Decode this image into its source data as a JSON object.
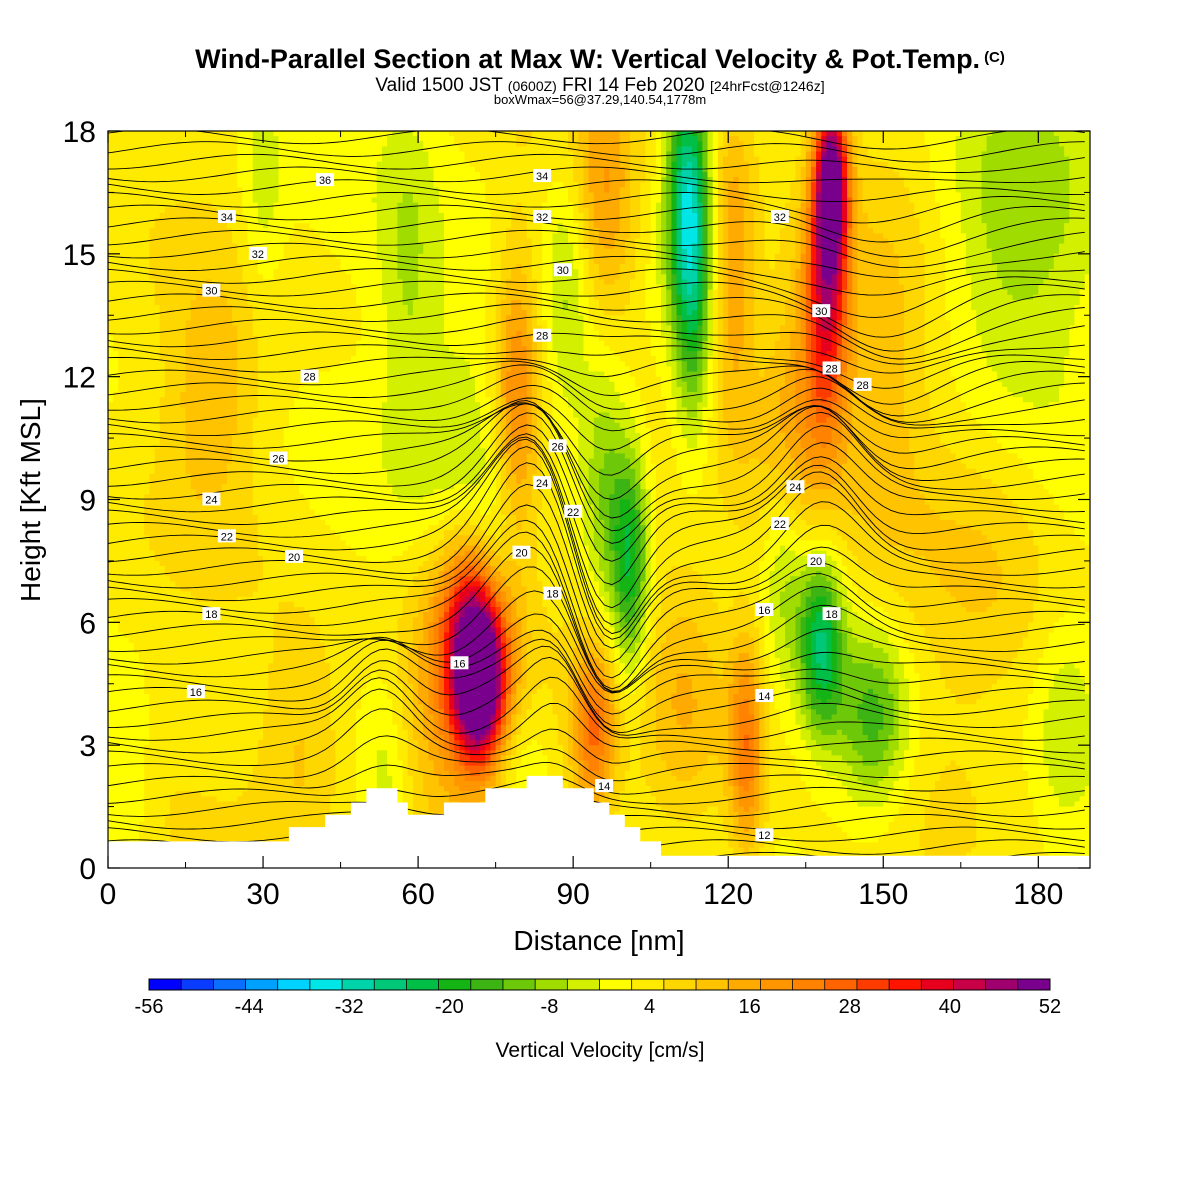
{
  "header": {
    "title": "Wind-Parallel Section at Max W: Vertical Velocity & Pot.Temp.",
    "title_mark": "(C)",
    "valid_a": "Valid 1500 JST",
    "valid_z": "(0600Z)",
    "valid_b": "FRI 14 Feb 2020",
    "fcst": "[24hrFcst@1246z]",
    "box": "boxWmax=56@37.29,140.54,1778m"
  },
  "chart_data": {
    "type": "heatmap",
    "xlabel": "Distance [nm]",
    "ylabel": "Height [Kft MSL]",
    "xlim": [
      0,
      190
    ],
    "ylim": [
      0,
      18
    ],
    "x_ticks": [
      "0",
      "30",
      "60",
      "90",
      "120",
      "150",
      "180"
    ],
    "y_ticks": [
      "0",
      "3",
      "6",
      "9",
      "12",
      "15",
      "18"
    ],
    "colorbar": {
      "label": "Vertical Velocity [cm/s]",
      "min": -56,
      "max": 52,
      "step": 4,
      "tick_labels": [
        "-56",
        "-44",
        "-32",
        "-20",
        "-8",
        "4",
        "16",
        "28",
        "40",
        "52"
      ],
      "colors": [
        "#0000ff",
        "#0a3cff",
        "#0a6eff",
        "#00a0ff",
        "#00d2ff",
        "#00e6e6",
        "#00d2aa",
        "#00c878",
        "#00be46",
        "#14b414",
        "#3cb414",
        "#6ec80a",
        "#a0dc00",
        "#d2f000",
        "#ffff00",
        "#ffeb00",
        "#ffd700",
        "#ffc300",
        "#ffaa00",
        "#ff9600",
        "#ff8200",
        "#ff6400",
        "#ff3c00",
        "#ff1400",
        "#e6001e",
        "#c80046",
        "#a0006e",
        "#78008c"
      ]
    },
    "terrain": [
      [
        0,
        0.65
      ],
      [
        35,
        0.65
      ],
      [
        35,
        1.0
      ],
      [
        42,
        1.0
      ],
      [
        42,
        1.3
      ],
      [
        47,
        1.3
      ],
      [
        47,
        1.6
      ],
      [
        50,
        1.6
      ],
      [
        50,
        1.95
      ],
      [
        56,
        1.95
      ],
      [
        56,
        1.6
      ],
      [
        58,
        1.6
      ],
      [
        58,
        1.3
      ],
      [
        65,
        1.3
      ],
      [
        65,
        1.6
      ],
      [
        73,
        1.6
      ],
      [
        73,
        1.95
      ],
      [
        81,
        1.95
      ],
      [
        81,
        2.25
      ],
      [
        88,
        2.25
      ],
      [
        88,
        1.95
      ],
      [
        94,
        1.95
      ],
      [
        94,
        1.6
      ],
      [
        97,
        1.6
      ],
      [
        97,
        1.3
      ],
      [
        100,
        1.3
      ],
      [
        100,
        1.0
      ],
      [
        103,
        1.0
      ],
      [
        103,
        0.65
      ],
      [
        107,
        0.65
      ],
      [
        107,
        0.3
      ],
      [
        190,
        0.3
      ]
    ],
    "w_features": [
      {
        "x": 72,
        "y": 4.4,
        "sx": 3.5,
        "sy": 1.4,
        "w": 50
      },
      {
        "x": 71,
        "y": 6.0,
        "sx": 5,
        "sy": 1.6,
        "w": 32
      },
      {
        "x": 65,
        "y": 3.5,
        "sx": 7,
        "sy": 2.5,
        "w": 14
      },
      {
        "x": 140,
        "y": 16.8,
        "sx": 2.2,
        "sy": 1.4,
        "w": 48
      },
      {
        "x": 139,
        "y": 14.0,
        "sx": 3,
        "sy": 2.2,
        "w": 34
      },
      {
        "x": 133,
        "y": 11.0,
        "sx": 6,
        "sy": 2.5,
        "w": 15
      },
      {
        "x": 94,
        "y": 3.4,
        "sx": 3,
        "sy": 1.5,
        "w": 22
      },
      {
        "x": 123.5,
        "y": 3.0,
        "sx": 2.5,
        "sy": 2.0,
        "w": 22
      },
      {
        "x": 79,
        "y": 11.5,
        "sx": 3,
        "sy": 2.5,
        "w": 18
      },
      {
        "x": 96,
        "y": 16.0,
        "sx": 4,
        "sy": 2.5,
        "w": 15
      },
      {
        "x": 121,
        "y": 14.5,
        "sx": 3,
        "sy": 3,
        "w": 16
      },
      {
        "x": 20,
        "y": 11.5,
        "sx": 6,
        "sy": 2,
        "w": 10
      },
      {
        "x": 38,
        "y": 3.0,
        "sx": 6,
        "sy": 2,
        "w": 9
      },
      {
        "x": 112,
        "y": 4.5,
        "sx": 6,
        "sy": 2.5,
        "w": 12
      },
      {
        "x": 101,
        "y": 7.5,
        "sx": 2.5,
        "sy": 2.0,
        "w": -24
      },
      {
        "x": 96,
        "y": 10.0,
        "sx": 3,
        "sy": 2.5,
        "w": -14
      },
      {
        "x": 89,
        "y": 13.5,
        "sx": 3.5,
        "sy": 2.5,
        "w": -12
      },
      {
        "x": 112,
        "y": 16.5,
        "sx": 3,
        "sy": 2.0,
        "w": -28
      },
      {
        "x": 113,
        "y": 14.0,
        "sx": 2.5,
        "sy": 2.5,
        "w": -18
      },
      {
        "x": 138,
        "y": 5.5,
        "sx": 3,
        "sy": 1.6,
        "w": -28
      },
      {
        "x": 148,
        "y": 3.6,
        "sx": 5,
        "sy": 1.6,
        "w": -20
      },
      {
        "x": 175,
        "y": 15.5,
        "sx": 10,
        "sy": 3,
        "w": -12
      },
      {
        "x": 58,
        "y": 14.0,
        "sx": 4,
        "sy": 3,
        "w": -8
      },
      {
        "x": 70,
        "y": 10.5,
        "sx": 6,
        "sy": 3,
        "w": -8
      },
      {
        "x": 75,
        "y": 7.0,
        "sx": 3,
        "sy": 1.5,
        "w": -10
      },
      {
        "x": 131,
        "y": 7.5,
        "sx": 3,
        "sy": 1.8,
        "w": -10
      },
      {
        "x": 54,
        "y": 2.0,
        "sx": 3,
        "sy": 2,
        "w": -6
      },
      {
        "x": 30,
        "y": 16.5,
        "sx": 3,
        "sy": 2,
        "w": -7
      },
      {
        "x": 4,
        "y": 2.0,
        "sx": 3,
        "sy": 1.5,
        "w": -6
      },
      {
        "x": 79,
        "y": 2.5,
        "sx": 5,
        "sy": 1.5,
        "w": -6
      },
      {
        "x": 185,
        "y": 3.5,
        "sx": 4,
        "sy": 2,
        "w": -6
      },
      {
        "x": 150,
        "y": 12.0,
        "sx": 6,
        "sy": 3,
        "w": 8
      },
      {
        "x": 170,
        "y": 7.0,
        "sx": 10,
        "sy": 3,
        "w": 6
      }
    ],
    "theta_labels": [
      {
        "v": "36",
        "x": 42,
        "y": 16.8
      },
      {
        "v": "34",
        "x": 23,
        "y": 15.9
      },
      {
        "v": "32",
        "x": 29,
        "y": 15.0
      },
      {
        "v": "30",
        "x": 20,
        "y": 14.1
      },
      {
        "v": "28",
        "x": 39,
        "y": 12.0
      },
      {
        "v": "26",
        "x": 33,
        "y": 10.0
      },
      {
        "v": "24",
        "x": 20,
        "y": 9.0
      },
      {
        "v": "22",
        "x": 23,
        "y": 8.1
      },
      {
        "v": "20",
        "x": 36,
        "y": 7.6
      },
      {
        "v": "18",
        "x": 20,
        "y": 6.2
      },
      {
        "v": "16",
        "x": 17,
        "y": 4.3
      },
      {
        "v": "34",
        "x": 84,
        "y": 16.9
      },
      {
        "v": "32",
        "x": 84,
        "y": 15.9
      },
      {
        "v": "30",
        "x": 88,
        "y": 14.6
      },
      {
        "v": "28",
        "x": 84,
        "y": 13.0
      },
      {
        "v": "26",
        "x": 87,
        "y": 10.3
      },
      {
        "v": "24",
        "x": 84,
        "y": 9.4
      },
      {
        "v": "22",
        "x": 90,
        "y": 8.7
      },
      {
        "v": "20",
        "x": 80,
        "y": 7.7
      },
      {
        "v": "18",
        "x": 86,
        "y": 6.7
      },
      {
        "v": "16",
        "x": 68,
        "y": 5.0
      },
      {
        "v": "14",
        "x": 96,
        "y": 2.0
      },
      {
        "v": "32",
        "x": 130,
        "y": 15.9
      },
      {
        "v": "30",
        "x": 138,
        "y": 13.6
      },
      {
        "v": "28",
        "x": 140,
        "y": 12.2
      },
      {
        "v": "28",
        "x": 146,
        "y": 11.8
      },
      {
        "v": "24",
        "x": 133,
        "y": 9.3
      },
      {
        "v": "22",
        "x": 130,
        "y": 8.4
      },
      {
        "v": "20",
        "x": 137,
        "y": 7.5
      },
      {
        "v": "18",
        "x": 140,
        "y": 6.2
      },
      {
        "v": "16",
        "x": 127,
        "y": 6.3
      },
      {
        "v": "14",
        "x": 127,
        "y": 4.2
      },
      {
        "v": "12",
        "x": 127,
        "y": 0.8
      }
    ]
  }
}
